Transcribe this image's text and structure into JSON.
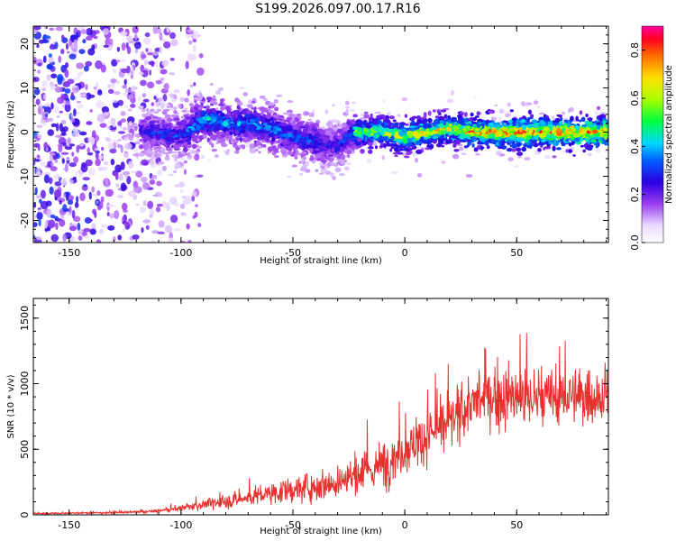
{
  "figure": {
    "title": "S199.2026.097.00.17.R16"
  },
  "chart_data": [
    {
      "type": "heatmap",
      "title": "S199.2026.097.00.17.R16",
      "xlabel": "Height of straight line (km)",
      "ylabel": "Frequency (Hz)",
      "xlim": [
        -166,
        91
      ],
      "ylim": [
        -25,
        24
      ],
      "xticks": [
        -150,
        -100,
        -50,
        0,
        50
      ],
      "xtick_labels": [
        "-150",
        "-100",
        "-50",
        "0",
        "50"
      ],
      "yticks": [
        -20,
        -10,
        0,
        10,
        20
      ],
      "ytick_labels": [
        "-20",
        "-10",
        "0",
        "10",
        "20"
      ],
      "colorbar": {
        "label": "Normalized spectral amplitude",
        "range": [
          0.0,
          0.9
        ],
        "ticks": [
          0.0,
          0.2,
          0.4,
          0.6,
          0.8
        ],
        "tick_labels": [
          "0.0",
          "0.2",
          "0.4",
          "0.6",
          "0.8"
        ]
      },
      "ridge": {
        "description_points_x": [
          -115,
          -100,
          -90,
          -80,
          -70,
          -60,
          -50,
          -40,
          -35,
          -30,
          -25,
          -22,
          -10,
          0,
          10,
          20,
          30,
          40,
          50,
          60,
          70,
          80,
          90
        ],
        "center_hz": [
          0,
          -1,
          3,
          2,
          2,
          1,
          -1,
          -2,
          -3,
          -3,
          -1,
          0,
          0,
          -1,
          0,
          1,
          0,
          0,
          0,
          0,
          0,
          0,
          0
        ],
        "peak_amplitude": [
          0.3,
          0.35,
          0.45,
          0.4,
          0.4,
          0.4,
          0.35,
          0.35,
          0.3,
          0.3,
          0.35,
          0.55,
          0.7,
          0.7,
          0.75,
          0.7,
          0.8,
          0.85,
          0.85,
          0.8,
          0.9,
          0.85,
          0.85
        ]
      }
    },
    {
      "type": "line",
      "xlabel": "Height of straight line (km)",
      "ylabel": "SNR (10 * v/v)",
      "xlim": [
        -166,
        91
      ],
      "ylim": [
        0,
        1650
      ],
      "xticks": [
        -150,
        -100,
        -50,
        0,
        50
      ],
      "xtick_labels": [
        "-150",
        "-100",
        "-50",
        "0",
        "50"
      ],
      "yticks": [
        0,
        500,
        1000,
        1500
      ],
      "ytick_labels": [
        "0",
        "500",
        "1000",
        "1500"
      ],
      "series": [
        {
          "name": "SNR",
          "color": "#e8302f",
          "envelope_x": [
            -166,
            -140,
            -120,
            -110,
            -100,
            -90,
            -80,
            -70,
            -60,
            -50,
            -40,
            -30,
            -20,
            -10,
            0,
            10,
            20,
            30,
            40,
            50,
            60,
            70,
            80,
            90
          ],
          "envelope_mean": [
            10,
            15,
            20,
            30,
            50,
            80,
            100,
            130,
            160,
            190,
            220,
            250,
            300,
            380,
            500,
            600,
            700,
            850,
            900,
            900,
            880,
            900,
            900,
            900
          ],
          "envelope_spread": [
            8,
            10,
            15,
            20,
            30,
            60,
            80,
            100,
            120,
            150,
            180,
            200,
            250,
            280,
            280,
            280,
            300,
            300,
            350,
            400,
            350,
            320,
            320,
            300
          ]
        }
      ]
    }
  ]
}
